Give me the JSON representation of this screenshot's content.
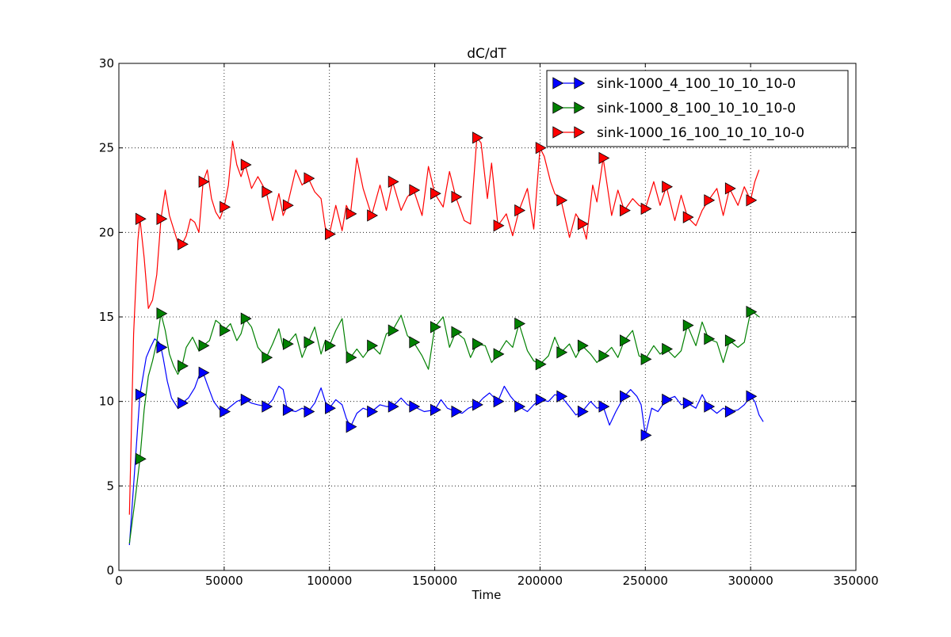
{
  "chart_data": {
    "type": "line",
    "title": "dC/dT",
    "xlabel": "Time",
    "ylabel": "",
    "xlim": [
      0,
      350000
    ],
    "ylim": [
      0,
      30
    ],
    "xticks": [
      0,
      50000,
      100000,
      150000,
      200000,
      250000,
      300000,
      350000
    ],
    "yticks": [
      0,
      5,
      10,
      15,
      20,
      25,
      30
    ],
    "grid": true,
    "legend_position": "top-right",
    "series": [
      {
        "name": "sink-1000_4_100_10_10_10-0",
        "color": "#0000ff",
        "marker": "triangle-right",
        "x": [
          5000,
          10000,
          13000,
          15000,
          17000,
          19000,
          20000,
          21000,
          23000,
          25000,
          28000,
          30000,
          33000,
          36000,
          38000,
          40000,
          42000,
          45000,
          48000,
          50000,
          53000,
          56000,
          58000,
          60000,
          63000,
          66000,
          70000,
          73000,
          76000,
          78000,
          80000,
          84000,
          87000,
          90000,
          93000,
          96000,
          98000,
          100000,
          103000,
          106000,
          108000,
          110000,
          113000,
          116000,
          120000,
          124000,
          127000,
          130000,
          134000,
          137000,
          140000,
          145000,
          150000,
          153000,
          156000,
          160000,
          163000,
          166000,
          170000,
          173000,
          176000,
          180000,
          183000,
          186000,
          190000,
          194000,
          197000,
          200000,
          204000,
          207000,
          210000,
          214000,
          217000,
          220000,
          224000,
          227000,
          230000,
          233000,
          236000,
          240000,
          243000,
          246000,
          248000,
          250000,
          253000,
          256000,
          260000,
          264000,
          267000,
          270000,
          274000,
          277000,
          280000,
          284000,
          287000,
          290000,
          294000,
          297000,
          300000,
          302000,
          304000,
          306000
        ],
        "y": [
          1.5,
          10.4,
          12.6,
          13.2,
          13.7,
          13.5,
          13.2,
          12.6,
          11.2,
          10.2,
          9.6,
          9.9,
          10.2,
          10.8,
          11.5,
          11.7,
          11.0,
          10.0,
          9.5,
          9.4,
          9.7,
          10.0,
          10.1,
          10.1,
          9.9,
          9.8,
          9.7,
          10.1,
          10.9,
          10.7,
          9.5,
          9.4,
          9.6,
          9.4,
          9.9,
          10.8,
          10.0,
          9.6,
          10.1,
          9.8,
          9.0,
          8.5,
          9.3,
          9.6,
          9.4,
          9.8,
          9.7,
          9.7,
          10.2,
          9.8,
          9.7,
          9.4,
          9.5,
          10.1,
          9.6,
          9.4,
          9.3,
          9.6,
          9.8,
          10.2,
          10.5,
          10.0,
          10.9,
          10.3,
          9.7,
          9.4,
          9.8,
          10.1,
          10.0,
          10.4,
          10.3,
          9.7,
          9.2,
          9.4,
          10.0,
          9.6,
          9.7,
          8.6,
          9.4,
          10.3,
          10.7,
          10.3,
          9.8,
          8.0,
          9.6,
          9.4,
          10.1,
          10.3,
          9.8,
          9.9,
          9.6,
          10.4,
          9.7,
          9.3,
          9.6,
          9.4,
          9.5,
          9.8,
          10.3,
          10.0,
          9.2,
          8.8
        ],
        "marker_x": [
          10000,
          20000,
          30000,
          40000,
          50000,
          60000,
          70000,
          80000,
          90000,
          100000,
          110000,
          120000,
          130000,
          140000,
          150000,
          160000,
          170000,
          180000,
          190000,
          200000,
          210000,
          220000,
          230000,
          240000,
          250000,
          260000,
          270000,
          280000,
          290000,
          300000
        ],
        "marker_y": [
          10.4,
          13.2,
          9.9,
          11.7,
          9.4,
          10.1,
          9.7,
          9.5,
          9.4,
          9.6,
          8.5,
          9.4,
          9.7,
          9.7,
          9.5,
          9.4,
          9.8,
          10.0,
          9.7,
          10.1,
          10.3,
          9.4,
          9.7,
          10.3,
          8.0,
          10.1,
          9.9,
          9.7,
          9.4,
          10.3
        ]
      },
      {
        "name": "sink-1000_8_100_10_10_10-0",
        "color": "#008000",
        "marker": "triangle-right",
        "x": [
          5000,
          8000,
          10000,
          12000,
          14000,
          16000,
          18000,
          20000,
          22000,
          24000,
          26000,
          28000,
          30000,
          32000,
          35000,
          38000,
          40000,
          43000,
          46000,
          48000,
          50000,
          53000,
          56000,
          58000,
          60000,
          63000,
          66000,
          70000,
          73000,
          76000,
          78000,
          80000,
          84000,
          87000,
          90000,
          93000,
          96000,
          98000,
          100000,
          103000,
          106000,
          108000,
          110000,
          113000,
          116000,
          120000,
          124000,
          127000,
          130000,
          134000,
          137000,
          140000,
          144000,
          147000,
          150000,
          154000,
          157000,
          160000,
          164000,
          167000,
          170000,
          174000,
          177000,
          180000,
          184000,
          187000,
          190000,
          194000,
          197000,
          200000,
          204000,
          207000,
          210000,
          214000,
          217000,
          220000,
          224000,
          227000,
          230000,
          234000,
          237000,
          240000,
          244000,
          247000,
          250000,
          254000,
          257000,
          260000,
          264000,
          267000,
          270000,
          274000,
          277000,
          280000,
          284000,
          287000,
          290000,
          294000,
          297000,
          300000,
          302000,
          304000
        ],
        "y": [
          1.6,
          4.5,
          6.6,
          9.5,
          11.5,
          12.4,
          13.5,
          15.2,
          14.2,
          12.8,
          12.1,
          11.6,
          12.1,
          13.2,
          13.8,
          13.0,
          13.3,
          13.6,
          14.8,
          14.6,
          14.2,
          14.6,
          13.6,
          14.0,
          14.9,
          14.4,
          13.2,
          12.6,
          13.4,
          14.3,
          13.2,
          13.4,
          14.0,
          12.6,
          13.5,
          14.4,
          12.8,
          13.6,
          13.3,
          14.2,
          14.9,
          13.0,
          12.6,
          13.1,
          12.6,
          13.3,
          12.8,
          14.0,
          14.2,
          15.1,
          13.9,
          13.5,
          12.7,
          11.9,
          14.4,
          15.0,
          13.2,
          14.1,
          13.7,
          12.6,
          13.4,
          13.3,
          12.3,
          12.8,
          13.6,
          13.2,
          14.6,
          13.0,
          12.4,
          12.2,
          12.7,
          13.8,
          12.9,
          13.4,
          12.6,
          13.3,
          12.8,
          12.3,
          12.7,
          13.2,
          12.6,
          13.6,
          14.2,
          12.7,
          12.5,
          13.3,
          12.8,
          13.1,
          12.6,
          13.0,
          14.5,
          13.3,
          14.7,
          13.7,
          13.5,
          12.3,
          13.6,
          13.2,
          13.5,
          15.3,
          15.2,
          15.0
        ],
        "marker_x": [
          10000,
          20000,
          30000,
          40000,
          50000,
          60000,
          70000,
          80000,
          90000,
          100000,
          110000,
          120000,
          130000,
          140000,
          150000,
          160000,
          170000,
          180000,
          190000,
          200000,
          210000,
          220000,
          230000,
          240000,
          250000,
          260000,
          270000,
          280000,
          290000,
          300000
        ],
        "marker_y": [
          6.6,
          15.2,
          12.1,
          13.3,
          14.2,
          14.9,
          12.6,
          13.4,
          13.5,
          13.3,
          12.6,
          13.3,
          14.2,
          13.5,
          14.4,
          14.1,
          13.4,
          12.8,
          14.6,
          12.2,
          12.9,
          13.3,
          12.7,
          13.6,
          12.5,
          13.1,
          14.5,
          13.7,
          13.6,
          15.3
        ]
      },
      {
        "name": "sink-1000_16_100_10_10_10-0",
        "color": "#ff0000",
        "marker": "triangle-right",
        "x": [
          5000,
          7000,
          9000,
          10000,
          12000,
          14000,
          16000,
          18000,
          20000,
          22000,
          24000,
          26000,
          28000,
          30000,
          32000,
          34000,
          36000,
          38000,
          40000,
          42000,
          44000,
          46000,
          48000,
          50000,
          52000,
          54000,
          56000,
          58000,
          60000,
          63000,
          66000,
          70000,
          73000,
          76000,
          78000,
          80000,
          84000,
          87000,
          90000,
          93000,
          96000,
          98000,
          100000,
          103000,
          106000,
          108000,
          110000,
          113000,
          116000,
          120000,
          124000,
          127000,
          130000,
          134000,
          137000,
          140000,
          144000,
          147000,
          150000,
          154000,
          157000,
          160000,
          164000,
          167000,
          170000,
          172000,
          175000,
          177000,
          180000,
          184000,
          187000,
          190000,
          194000,
          197000,
          200000,
          202000,
          205000,
          207000,
          210000,
          214000,
          217000,
          220000,
          222000,
          225000,
          227000,
          230000,
          234000,
          237000,
          240000,
          244000,
          247000,
          250000,
          254000,
          257000,
          260000,
          264000,
          267000,
          270000,
          274000,
          277000,
          280000,
          284000,
          287000,
          290000,
          294000,
          297000,
          300000,
          302000,
          304000
        ],
        "y": [
          3.3,
          14.0,
          19.5,
          20.8,
          18.5,
          15.5,
          16.0,
          17.5,
          20.8,
          22.5,
          21.0,
          20.2,
          19.4,
          19.3,
          19.8,
          20.8,
          20.6,
          20.0,
          23.0,
          23.7,
          22.0,
          21.2,
          20.8,
          21.5,
          22.8,
          25.4,
          24.0,
          23.3,
          24.0,
          22.6,
          23.3,
          22.4,
          20.7,
          22.3,
          21.0,
          21.6,
          23.7,
          22.8,
          23.2,
          22.4,
          22.0,
          20.3,
          19.9,
          21.6,
          20.1,
          21.6,
          21.1,
          24.4,
          22.6,
          21.0,
          22.8,
          21.3,
          23.0,
          21.3,
          22.1,
          22.5,
          21.0,
          23.9,
          22.3,
          21.5,
          23.6,
          22.1,
          20.7,
          20.5,
          25.6,
          25.3,
          22.0,
          24.1,
          20.4,
          21.1,
          19.8,
          21.3,
          22.6,
          20.2,
          25.0,
          24.5,
          23.0,
          22.3,
          21.9,
          19.7,
          21.1,
          20.5,
          19.6,
          22.8,
          21.8,
          24.4,
          21.0,
          22.5,
          21.3,
          22.0,
          21.6,
          21.4,
          23.0,
          21.6,
          22.7,
          20.7,
          22.2,
          20.9,
          20.4,
          21.3,
          21.9,
          22.6,
          21.0,
          22.6,
          21.6,
          22.7,
          21.9,
          23.0,
          23.7
        ],
        "marker_x": [
          10000,
          20000,
          30000,
          40000,
          50000,
          60000,
          70000,
          80000,
          90000,
          100000,
          110000,
          120000,
          130000,
          140000,
          150000,
          160000,
          170000,
          180000,
          190000,
          200000,
          210000,
          220000,
          230000,
          240000,
          250000,
          260000,
          270000,
          280000,
          290000,
          300000
        ],
        "marker_y": [
          20.8,
          20.8,
          19.3,
          23.0,
          21.5,
          24.0,
          22.4,
          21.6,
          23.2,
          19.9,
          21.1,
          21.0,
          23.0,
          22.5,
          22.3,
          22.1,
          25.6,
          20.4,
          21.3,
          25.0,
          21.9,
          20.5,
          24.4,
          21.3,
          21.4,
          22.7,
          20.9,
          21.9,
          22.6,
          21.9
        ]
      }
    ]
  }
}
